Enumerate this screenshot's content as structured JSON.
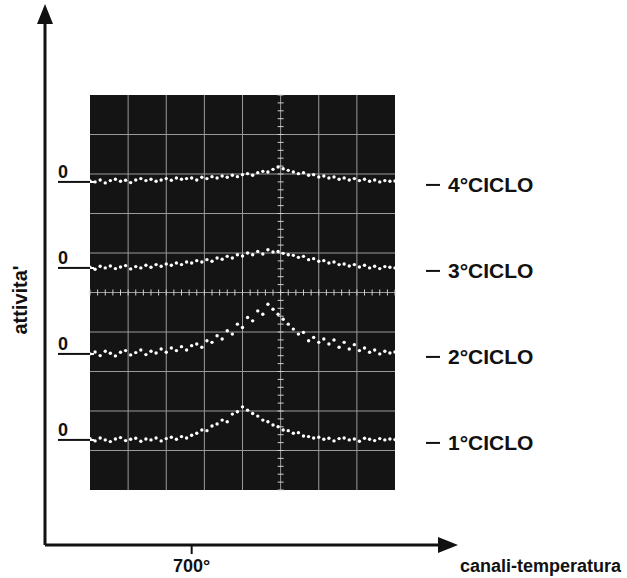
{
  "chart_data": [
    {
      "type": "scatter",
      "title": "1°CICLO",
      "x_label": "canali-temperatura",
      "y_label": "attivita'",
      "marker": "dot",
      "color": "#ffffff",
      "grid": true,
      "tick_labels": true,
      "xlim": [
        600,
        900
      ],
      "ylim": [
        -1,
        1.6
      ],
      "xticks": [
        {
          "value": 700,
          "label": "700°"
        }
      ],
      "yticks": [
        0
      ],
      "x": [
        600,
        605,
        610,
        615,
        620,
        625,
        630,
        635,
        640,
        645,
        650,
        655,
        660,
        665,
        670,
        675,
        680,
        685,
        690,
        695,
        700,
        705,
        710,
        715,
        720,
        725,
        730,
        735,
        740,
        745,
        750,
        755,
        760,
        765,
        770,
        775,
        780,
        785,
        790,
        795,
        800,
        805,
        810,
        815,
        820,
        825,
        830,
        835,
        840,
        845,
        850,
        855,
        860,
        865,
        870,
        875,
        880,
        885,
        890,
        895,
        900
      ],
      "values": [
        0.04,
        -0.03,
        0.06,
        0.0,
        -0.05,
        0.03,
        0.07,
        -0.02,
        0.02,
        0.05,
        -0.04,
        0.03,
        0.0,
        0.06,
        -0.03,
        0.04,
        0.08,
        0.02,
        0.1,
        0.06,
        0.14,
        0.2,
        0.3,
        0.28,
        0.42,
        0.48,
        0.6,
        0.55,
        0.78,
        0.85,
        1.0,
        0.9,
        0.8,
        0.72,
        0.6,
        0.55,
        0.45,
        0.4,
        0.3,
        0.28,
        0.2,
        0.22,
        0.12,
        0.1,
        0.06,
        0.08,
        0.02,
        0.05,
        -0.03,
        0.04,
        0.06,
        0.0,
        0.03,
        -0.04,
        0.05,
        0.02,
        -0.02,
        0.04,
        0.0,
        0.03,
        0.01
      ]
    },
    {
      "type": "scatter",
      "title": "2°CICLO",
      "marker": "dot",
      "color": "#ffffff",
      "grid": true,
      "tick_labels": "y",
      "xlim": [
        600,
        900
      ],
      "ylim": [
        -1,
        1.6
      ],
      "yticks": [
        0
      ],
      "x": [
        600,
        605,
        610,
        615,
        620,
        625,
        630,
        635,
        640,
        645,
        650,
        655,
        660,
        665,
        670,
        675,
        680,
        685,
        690,
        695,
        700,
        705,
        710,
        715,
        720,
        725,
        730,
        735,
        740,
        745,
        750,
        755,
        760,
        765,
        770,
        775,
        780,
        785,
        790,
        795,
        800,
        805,
        810,
        815,
        820,
        825,
        830,
        835,
        840,
        845,
        850,
        855,
        860,
        865,
        870,
        875,
        880,
        885,
        890,
        895,
        900
      ],
      "values": [
        0.0,
        0.06,
        -0.05,
        0.08,
        0.02,
        -0.06,
        0.05,
        0.1,
        -0.03,
        0.04,
        0.12,
        -0.02,
        0.08,
        0.03,
        0.15,
        0.05,
        0.18,
        0.1,
        0.22,
        0.12,
        0.25,
        0.3,
        0.2,
        0.4,
        0.35,
        0.55,
        0.45,
        0.7,
        0.6,
        0.9,
        0.8,
        1.1,
        1.0,
        1.3,
        1.2,
        1.5,
        1.35,
        1.2,
        1.05,
        0.9,
        0.75,
        0.6,
        0.65,
        0.4,
        0.5,
        0.35,
        0.45,
        0.3,
        0.42,
        0.2,
        0.35,
        0.15,
        0.28,
        0.1,
        0.18,
        0.05,
        0.12,
        0.0,
        0.08,
        0.03,
        0.06
      ]
    },
    {
      "type": "scatter",
      "title": "3°CICLO",
      "marker": "dot",
      "color": "#ffffff",
      "grid": true,
      "tick_labels": "y",
      "xlim": [
        600,
        900
      ],
      "ylim": [
        -1,
        1.6
      ],
      "yticks": [
        0
      ],
      "x": [
        600,
        605,
        610,
        615,
        620,
        625,
        630,
        635,
        640,
        645,
        650,
        655,
        660,
        665,
        670,
        675,
        680,
        685,
        690,
        695,
        700,
        705,
        710,
        715,
        720,
        725,
        730,
        735,
        740,
        745,
        750,
        755,
        760,
        765,
        770,
        775,
        780,
        785,
        790,
        795,
        800,
        805,
        810,
        815,
        820,
        825,
        830,
        835,
        840,
        845,
        850,
        855,
        860,
        865,
        870,
        875,
        880,
        885,
        890,
        895,
        900
      ],
      "values": [
        0.02,
        -0.04,
        0.05,
        0.0,
        0.06,
        -0.02,
        0.03,
        0.07,
        -0.03,
        0.04,
        0.0,
        0.08,
        0.02,
        0.1,
        0.05,
        0.12,
        0.08,
        0.15,
        0.1,
        0.18,
        0.15,
        0.22,
        0.18,
        0.25,
        0.2,
        0.3,
        0.26,
        0.35,
        0.3,
        0.4,
        0.36,
        0.45,
        0.4,
        0.5,
        0.42,
        0.55,
        0.48,
        0.5,
        0.44,
        0.4,
        0.38,
        0.32,
        0.35,
        0.25,
        0.28,
        0.2,
        0.22,
        0.15,
        0.18,
        0.1,
        0.12,
        0.06,
        0.1,
        0.03,
        0.08,
        0.0,
        0.05,
        -0.02,
        0.04,
        0.02,
        0.0
      ]
    },
    {
      "type": "scatter",
      "title": "4°CICLO",
      "marker": "dot",
      "color": "#ffffff",
      "grid": true,
      "tick_labels": "y",
      "xlim": [
        600,
        900
      ],
      "ylim": [
        -1,
        1.6
      ],
      "yticks": [
        0
      ],
      "x": [
        600,
        605,
        610,
        615,
        620,
        625,
        630,
        635,
        640,
        645,
        650,
        655,
        660,
        665,
        670,
        675,
        680,
        685,
        690,
        695,
        700,
        705,
        710,
        715,
        720,
        725,
        730,
        735,
        740,
        745,
        750,
        755,
        760,
        765,
        770,
        775,
        780,
        785,
        790,
        795,
        800,
        805,
        810,
        815,
        820,
        825,
        830,
        835,
        840,
        845,
        850,
        855,
        860,
        865,
        870,
        875,
        880,
        885,
        890,
        895,
        900
      ],
      "values": [
        0.03,
        0.0,
        0.06,
        -0.03,
        0.04,
        0.08,
        0.02,
        0.05,
        -0.02,
        0.06,
        0.1,
        0.04,
        0.08,
        0.02,
        0.06,
        0.1,
        0.05,
        0.12,
        0.08,
        0.1,
        0.12,
        0.06,
        0.14,
        0.1,
        0.16,
        0.12,
        0.18,
        0.14,
        0.2,
        0.16,
        0.22,
        0.25,
        0.2,
        0.28,
        0.32,
        0.3,
        0.38,
        0.45,
        0.4,
        0.35,
        0.3,
        0.25,
        0.28,
        0.2,
        0.22,
        0.15,
        0.18,
        0.12,
        0.15,
        0.08,
        0.12,
        0.06,
        0.1,
        0.04,
        0.08,
        0.02,
        0.06,
        0.0,
        0.04,
        0.02,
        0.03
      ]
    }
  ]
}
